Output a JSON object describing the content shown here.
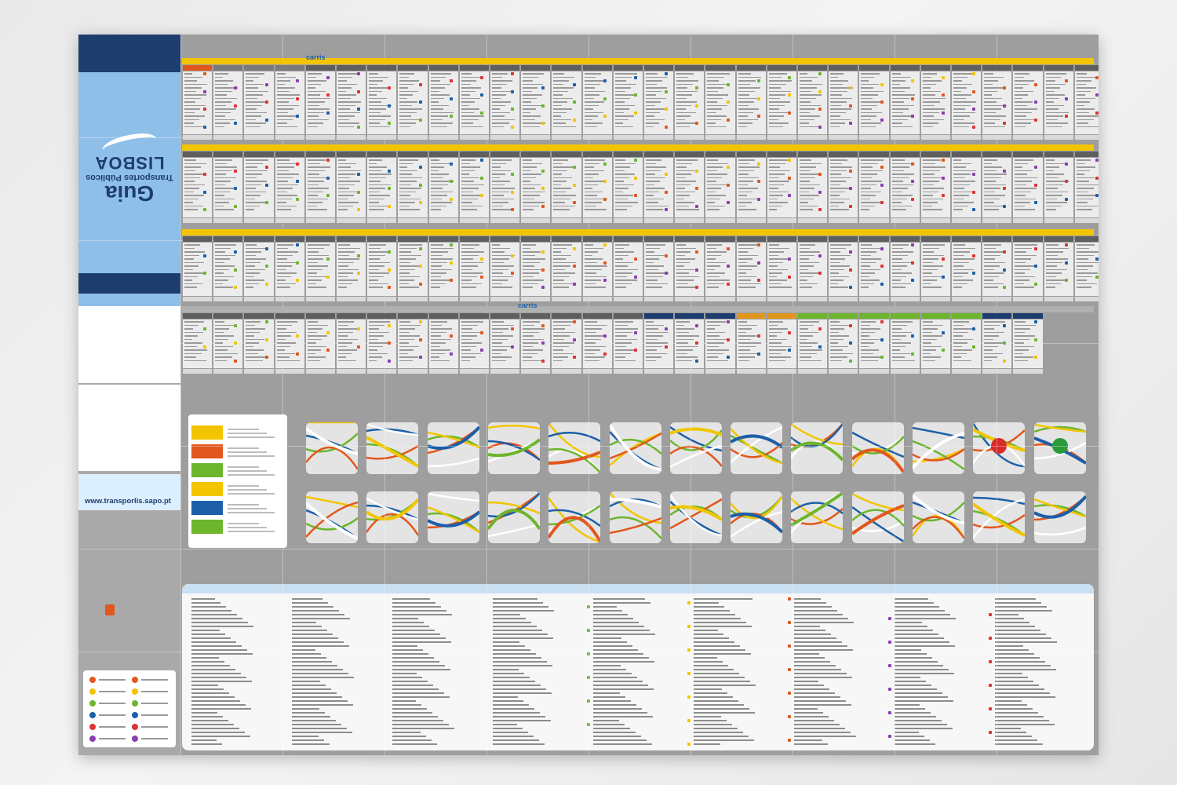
{
  "cover": {
    "title": "Guia",
    "subtitle": "Transportes Públicos",
    "city": "LISBOA",
    "website": "www.transporlis.sapo.pt",
    "carris_logo": "carris"
  },
  "route_tables": {
    "operator_label": "carris"
  },
  "colors": {
    "carris_yellow": "#f2c500",
    "metro_orange": "#e2571d",
    "cp_green": "#6cb52d",
    "fertagus_navy": "#1c3d6e",
    "cover_blue": "#8ebfe9",
    "sheet_grey": "#9e9e9e"
  },
  "icons": [
    "bird-logo-icon",
    "metro-logo-icon",
    "carris-logo-icon",
    "map-tile-icon"
  ]
}
